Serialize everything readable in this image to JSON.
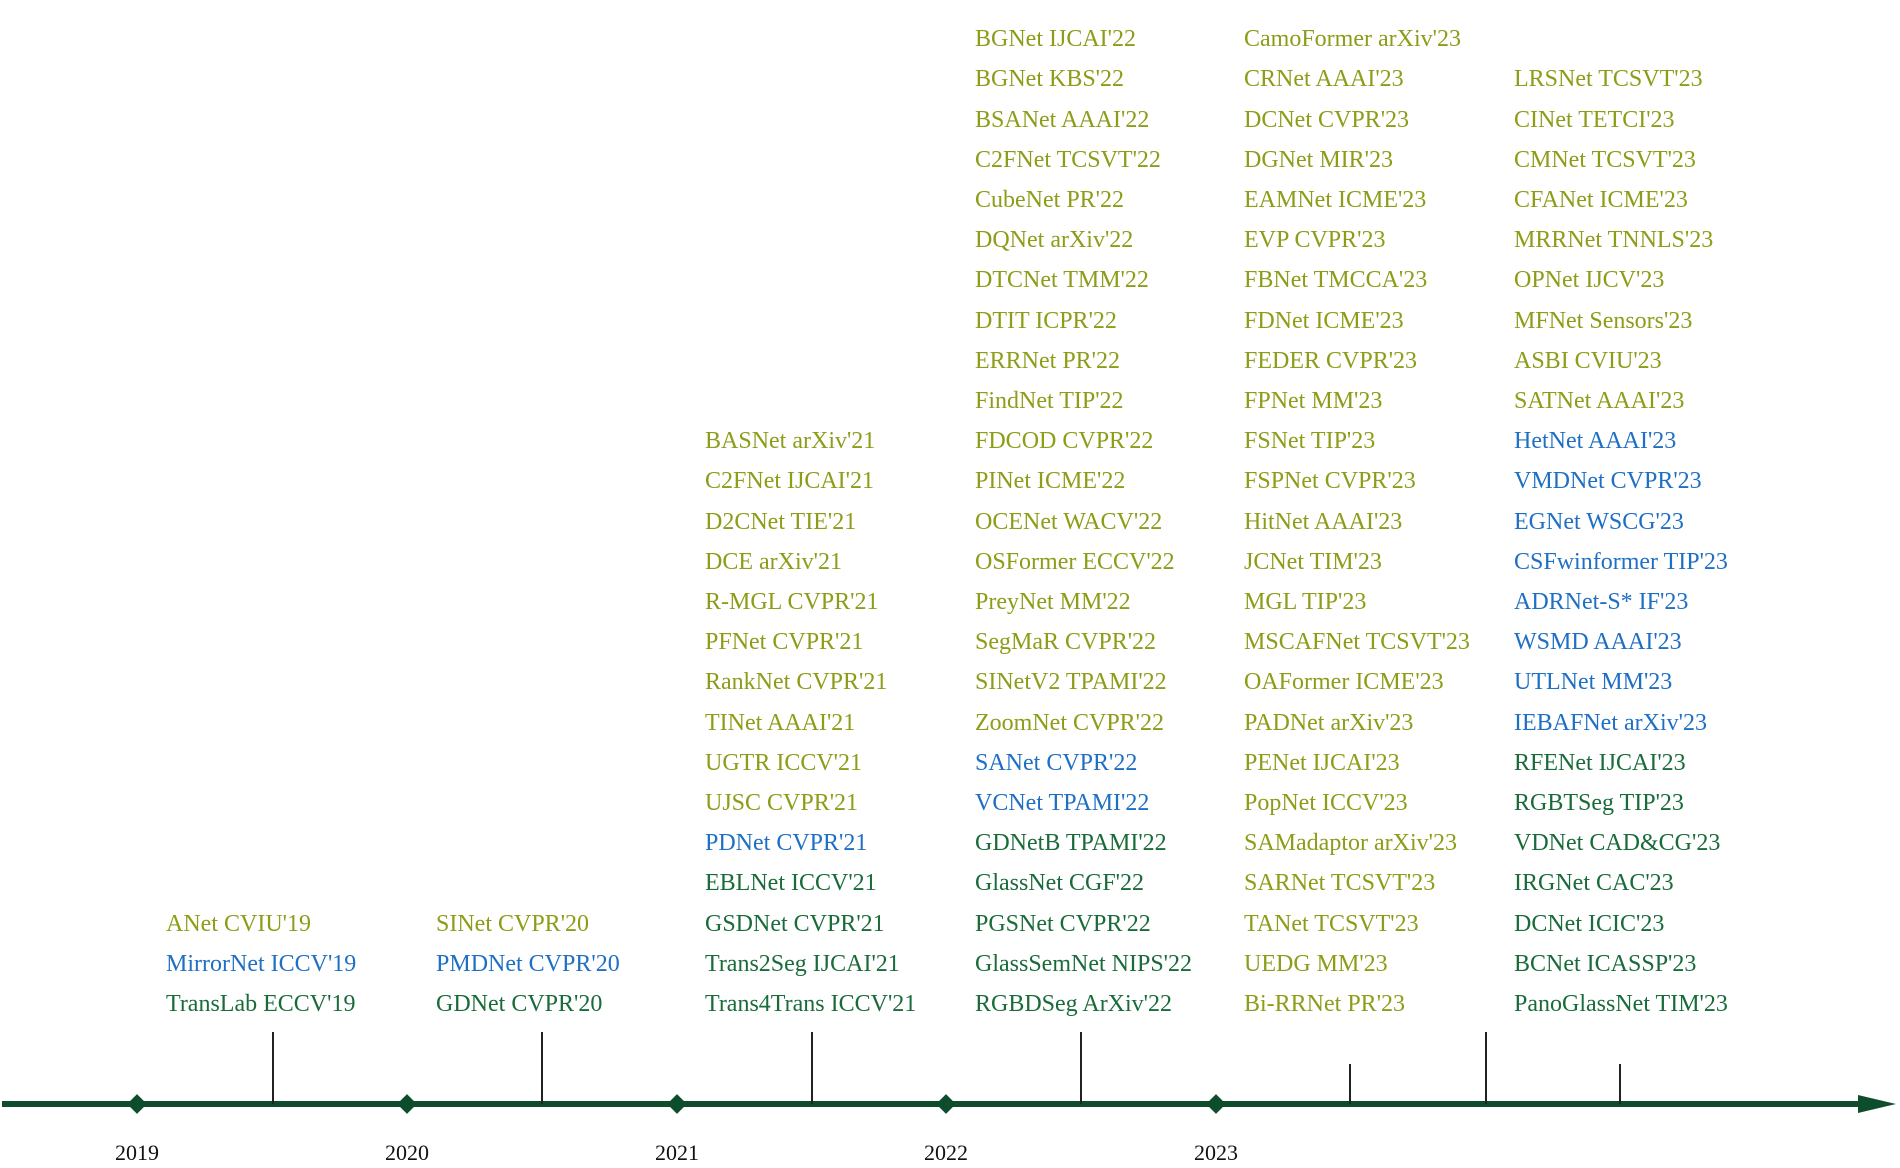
{
  "colors": {
    "yellow": "#8e9c17",
    "blue": "#1f6fc4",
    "green": "#1a6b3a",
    "axis": "#0e4d2c",
    "tick": "#222222",
    "year_text": "#111111"
  },
  "years": [
    "2019",
    "2020",
    "2021",
    "2022",
    "2023"
  ],
  "columns": [
    {
      "items": [
        {
          "text": "ANet CVIU'19",
          "color": "yellow"
        },
        {
          "text": "MirrorNet ICCV'19",
          "color": "blue"
        },
        {
          "text": "TransLab ECCV'19",
          "color": "green"
        }
      ]
    },
    {
      "items": [
        {
          "text": "SINet CVPR'20",
          "color": "yellow"
        },
        {
          "text": "PMDNet CVPR'20",
          "color": "blue"
        },
        {
          "text": "GDNet CVPR'20",
          "color": "green"
        }
      ]
    },
    {
      "items": [
        {
          "text": "BASNet arXiv'21",
          "color": "yellow"
        },
        {
          "text": "C2FNet IJCAI'21",
          "color": "yellow"
        },
        {
          "text": "D2CNet TIE'21",
          "color": "yellow"
        },
        {
          "text": "DCE arXiv'21",
          "color": "yellow"
        },
        {
          "text": "R-MGL CVPR'21",
          "color": "yellow"
        },
        {
          "text": "PFNet CVPR'21",
          "color": "yellow"
        },
        {
          "text": "RankNet CVPR'21",
          "color": "yellow"
        },
        {
          "text": "TINet AAAI'21",
          "color": "yellow"
        },
        {
          "text": "UGTR ICCV'21",
          "color": "yellow"
        },
        {
          "text": "UJSC CVPR'21",
          "color": "yellow"
        },
        {
          "text": "PDNet CVPR'21",
          "color": "blue"
        },
        {
          "text": "EBLNet ICCV'21",
          "color": "green"
        },
        {
          "text": "GSDNet CVPR'21",
          "color": "green"
        },
        {
          "text": "Trans2Seg IJCAI'21",
          "color": "green"
        },
        {
          "text": "Trans4Trans ICCV'21",
          "color": "green"
        }
      ]
    },
    {
      "items": [
        {
          "text": "BGNet IJCAI'22",
          "color": "yellow"
        },
        {
          "text": "BGNet KBS'22",
          "color": "yellow"
        },
        {
          "text": "BSANet AAAI'22",
          "color": "yellow"
        },
        {
          "text": "C2FNet TCSVT'22",
          "color": "yellow"
        },
        {
          "text": "CubeNet PR'22",
          "color": "yellow"
        },
        {
          "text": "DQNet arXiv'22",
          "color": "yellow"
        },
        {
          "text": "DTCNet TMM'22",
          "color": "yellow"
        },
        {
          "text": "DTIT ICPR'22",
          "color": "yellow"
        },
        {
          "text": "ERRNet PR'22",
          "color": "yellow"
        },
        {
          "text": "FindNet TIP'22",
          "color": "yellow"
        },
        {
          "text": "FDCOD CVPR'22",
          "color": "yellow"
        },
        {
          "text": "PINet ICME'22",
          "color": "yellow"
        },
        {
          "text": "OCENet WACV'22",
          "color": "yellow"
        },
        {
          "text": "OSFormer ECCV'22",
          "color": "yellow"
        },
        {
          "text": "PreyNet MM'22",
          "color": "yellow"
        },
        {
          "text": "SegMaR CVPR'22",
          "color": "yellow"
        },
        {
          "text": "SINetV2 TPAMI'22",
          "color": "yellow"
        },
        {
          "text": "ZoomNet CVPR'22",
          "color": "yellow"
        },
        {
          "text": "SANet CVPR'22",
          "color": "blue"
        },
        {
          "text": "VCNet TPAMI'22",
          "color": "blue"
        },
        {
          "text": "GDNetB TPAMI'22",
          "color": "green"
        },
        {
          "text": "GlassNet CGF'22",
          "color": "green"
        },
        {
          "text": "PGSNet CVPR'22",
          "color": "green"
        },
        {
          "text": "GlassSemNet NIPS'22",
          "color": "green"
        },
        {
          "text": "RGBDSeg ArXiv'22",
          "color": "green"
        }
      ]
    },
    {
      "items": [
        {
          "text": "CamoFormer arXiv'23",
          "color": "yellow"
        },
        {
          "text": "CRNet AAAI'23",
          "color": "yellow"
        },
        {
          "text": "DCNet CVPR'23",
          "color": "yellow"
        },
        {
          "text": "DGNet MIR'23",
          "color": "yellow"
        },
        {
          "text": "EAMNet ICME'23",
          "color": "yellow"
        },
        {
          "text": "EVP CVPR'23",
          "color": "yellow"
        },
        {
          "text": "FBNet TMCCA'23",
          "color": "yellow"
        },
        {
          "text": "FDNet ICME'23",
          "color": "yellow"
        },
        {
          "text": "FEDER CVPR'23",
          "color": "yellow"
        },
        {
          "text": "FPNet MM'23",
          "color": "yellow"
        },
        {
          "text": "FSNet TIP'23",
          "color": "yellow"
        },
        {
          "text": "FSPNet CVPR'23",
          "color": "yellow"
        },
        {
          "text": "HitNet AAAI'23",
          "color": "yellow"
        },
        {
          "text": "JCNet TIM'23",
          "color": "yellow"
        },
        {
          "text": "MGL TIP'23",
          "color": "yellow"
        },
        {
          "text": "MSCAFNet TCSVT'23",
          "color": "yellow"
        },
        {
          "text": "OAFormer ICME'23",
          "color": "yellow"
        },
        {
          "text": "PADNet arXiv'23",
          "color": "yellow"
        },
        {
          "text": "PENet IJCAI'23",
          "color": "yellow"
        },
        {
          "text": "PopNet ICCV'23",
          "color": "yellow"
        },
        {
          "text": "SAMadaptor arXiv'23",
          "color": "yellow"
        },
        {
          "text": "SARNet TCSVT'23",
          "color": "yellow"
        },
        {
          "text": "TANet TCSVT'23",
          "color": "yellow"
        },
        {
          "text": "UEDG MM'23",
          "color": "yellow"
        },
        {
          "text": "Bi-RRNet PR'23",
          "color": "yellow"
        }
      ]
    },
    {
      "items": [
        {
          "text": "LRSNet TCSVT'23",
          "color": "yellow"
        },
        {
          "text": "CINet TETCI'23",
          "color": "yellow"
        },
        {
          "text": "CMNet TCSVT'23",
          "color": "yellow"
        },
        {
          "text": "CFANet ICME'23",
          "color": "yellow"
        },
        {
          "text": "MRRNet TNNLS'23",
          "color": "yellow"
        },
        {
          "text": "OPNet IJCV'23",
          "color": "yellow"
        },
        {
          "text": "MFNet Sensors'23",
          "color": "yellow"
        },
        {
          "text": "ASBI CVIU'23",
          "color": "yellow"
        },
        {
          "text": "SATNet AAAI'23",
          "color": "yellow"
        },
        {
          "text": "HetNet AAAI'23",
          "color": "blue"
        },
        {
          "text": "VMDNet CVPR'23",
          "color": "blue"
        },
        {
          "text": "EGNet WSCG'23",
          "color": "blue"
        },
        {
          "text": "CSFwinformer TIP'23",
          "color": "blue"
        },
        {
          "text": "ADRNet-S* IF'23",
          "color": "blue"
        },
        {
          "text": "WSMD AAAI'23",
          "color": "blue"
        },
        {
          "text": "UTLNet MM'23",
          "color": "blue"
        },
        {
          "text": "IEBAFNet arXiv'23",
          "color": "blue"
        },
        {
          "text": "RFENet IJCAI'23",
          "color": "green"
        },
        {
          "text": "RGBTSeg TIP'23",
          "color": "green"
        },
        {
          "text": "VDNet CAD&CG'23",
          "color": "green"
        },
        {
          "text": "IRGNet CAC'23",
          "color": "green"
        },
        {
          "text": "DCNet ICIC'23",
          "color": "green"
        },
        {
          "text": "BCNet ICASSP'23",
          "color": "green"
        },
        {
          "text": "PanoGlassNet TIM'23",
          "color": "green"
        }
      ]
    }
  ]
}
